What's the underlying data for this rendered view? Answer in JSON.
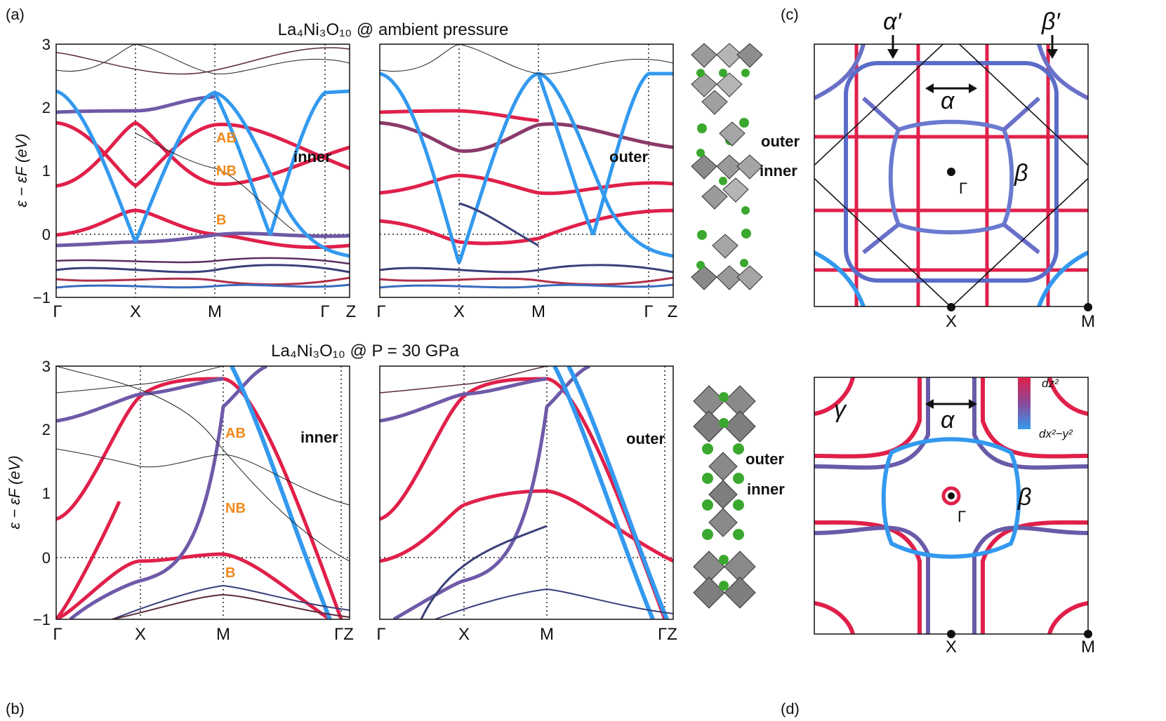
{
  "panels": {
    "a": {
      "letter": "(a)",
      "title": "La₄Ni₃O₁₀ @ ambient pressure"
    },
    "b": {
      "letter": "(b)",
      "title": "La₄Ni₃O₁₀ @ P = 30 GPa"
    },
    "c": {
      "letter": "(c)"
    },
    "d": {
      "letter": "(d)"
    }
  },
  "band_axes": {
    "ylabel": "ε − εF (eV)",
    "yticks": [
      "3",
      "2",
      "1",
      "0",
      "−1"
    ],
    "kpoints": [
      "Γ",
      "X",
      "M",
      "Γ",
      "Z"
    ],
    "kpoints_b": [
      "Γ",
      "X",
      "M",
      "ΓZ"
    ]
  },
  "band_labels": {
    "ab": "AB",
    "nb": "NB",
    "b": "B",
    "inner": "inner",
    "outer": "outer"
  },
  "fs_labels": {
    "alpha": "α",
    "beta": "β",
    "alpha_p": "α′",
    "beta_p": "β′",
    "gamma": "γ",
    "Gamma": "Γ",
    "X": "X",
    "M": "M"
  },
  "colorbar": {
    "top": "dz²",
    "bottom": "dx²−y²"
  },
  "colors": {
    "red": "#e0204a",
    "blue": "#3399ee",
    "purple": "#6e5aa8",
    "orange": "#f08a1a"
  }
}
